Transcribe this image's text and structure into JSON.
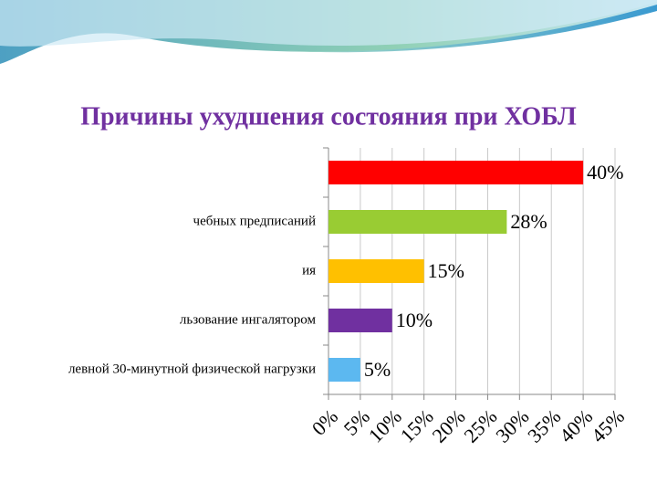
{
  "chart_data": {
    "type": "hbar",
    "title": "Причины ухудшения состояния при ХОБЛ",
    "categories": [
      null,
      "чебных предписаний",
      "ия",
      "льзование ингалятором",
      "левной 30-минутной физической нагрузки"
    ],
    "values": [
      40,
      28,
      15,
      10,
      5
    ],
    "value_labels": [
      "40%",
      "28%",
      "15%",
      "10%",
      "5%"
    ],
    "colors": [
      "#ff0000",
      "#99cc33",
      "#ffc000",
      "#7030a0",
      "#5cb8f0"
    ],
    "xlim": [
      0,
      45
    ],
    "xticks": [
      {
        "value": 0,
        "label": "0%"
      },
      {
        "value": 5,
        "label": "5%"
      },
      {
        "value": 10,
        "label": "10%"
      },
      {
        "value": 15,
        "label": "15%"
      },
      {
        "value": 20,
        "label": "20%"
      },
      {
        "value": 25,
        "label": "25%"
      },
      {
        "value": 30,
        "label": "30%"
      },
      {
        "value": 35,
        "label": "35%"
      },
      {
        "value": 40,
        "label": "40%"
      },
      {
        "value": 45,
        "label": "45%"
      }
    ],
    "grid": true
  }
}
